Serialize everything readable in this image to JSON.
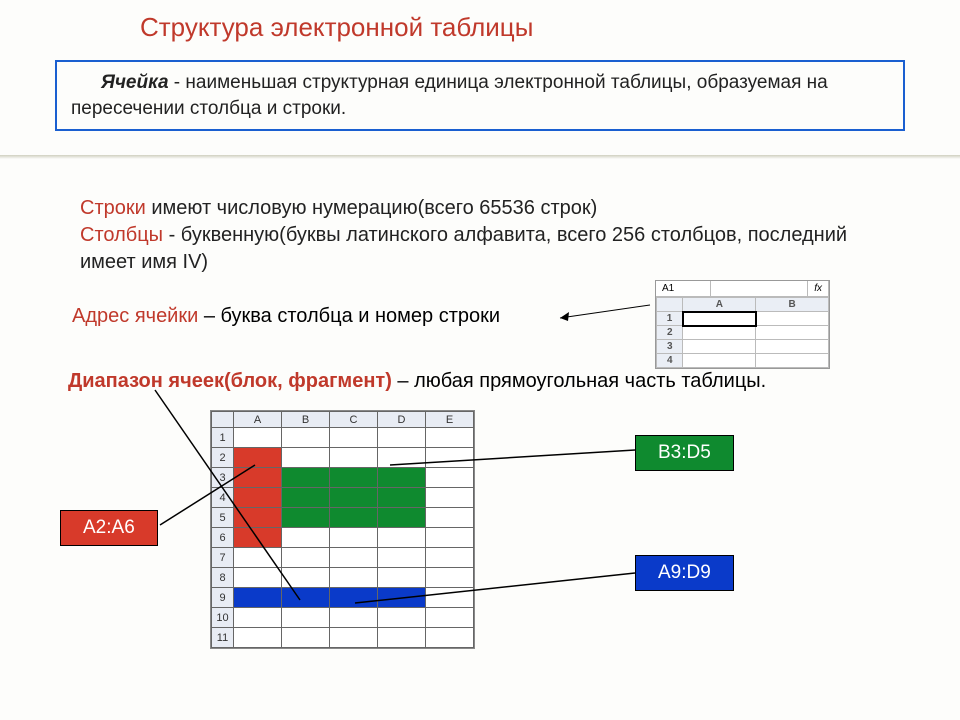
{
  "title": "Структура электронной таблицы",
  "definition": {
    "term": "Ячейка",
    "text": " - наименьшая структурная единица электронной  таблицы, образуемая на пересечении столбца и строки."
  },
  "rows_label": "Строки",
  "rows_text": " имеют числовую нумерацию(всего 65536 строк)",
  "cols_label": "Столбцы",
  "cols_text": " - буквенную(буквы латинского алфавита, всего 256 столбцов, последний имеет имя IV)",
  "addr_label": "Адрес ячейки",
  "addr_text": " – буква столбца и номер строки",
  "range_label": "Диапазон ячеек(блок, фрагмент)",
  "range_text": " – любая прямоугольная  часть таблицы.",
  "mini": {
    "name_box": "A1",
    "fx": "fx",
    "cols": [
      "A",
      "B"
    ],
    "rows": [
      "1",
      "2",
      "3",
      "4"
    ]
  },
  "sheet": {
    "cols": [
      "A",
      "B",
      "C",
      "D",
      "E"
    ],
    "rows": [
      "1",
      "2",
      "3",
      "4",
      "5",
      "6",
      "7",
      "8",
      "9",
      "10",
      "11"
    ],
    "red_fill": "#d83a2a",
    "green_fill": "#0f8a2f",
    "blue_fill": "#0a3ac9",
    "red_range": {
      "c1": 0,
      "c2": 0,
      "r1": 1,
      "r2": 5
    },
    "green_range": {
      "c1": 1,
      "c2": 3,
      "r1": 2,
      "r2": 4
    },
    "blue_range": {
      "c1": 0,
      "c2": 3,
      "r1": 8,
      "r2": 8
    }
  },
  "labels": {
    "a2a6": "A2:A6",
    "b3d5": "B3:D5",
    "a9d9": "A9:D9"
  }
}
